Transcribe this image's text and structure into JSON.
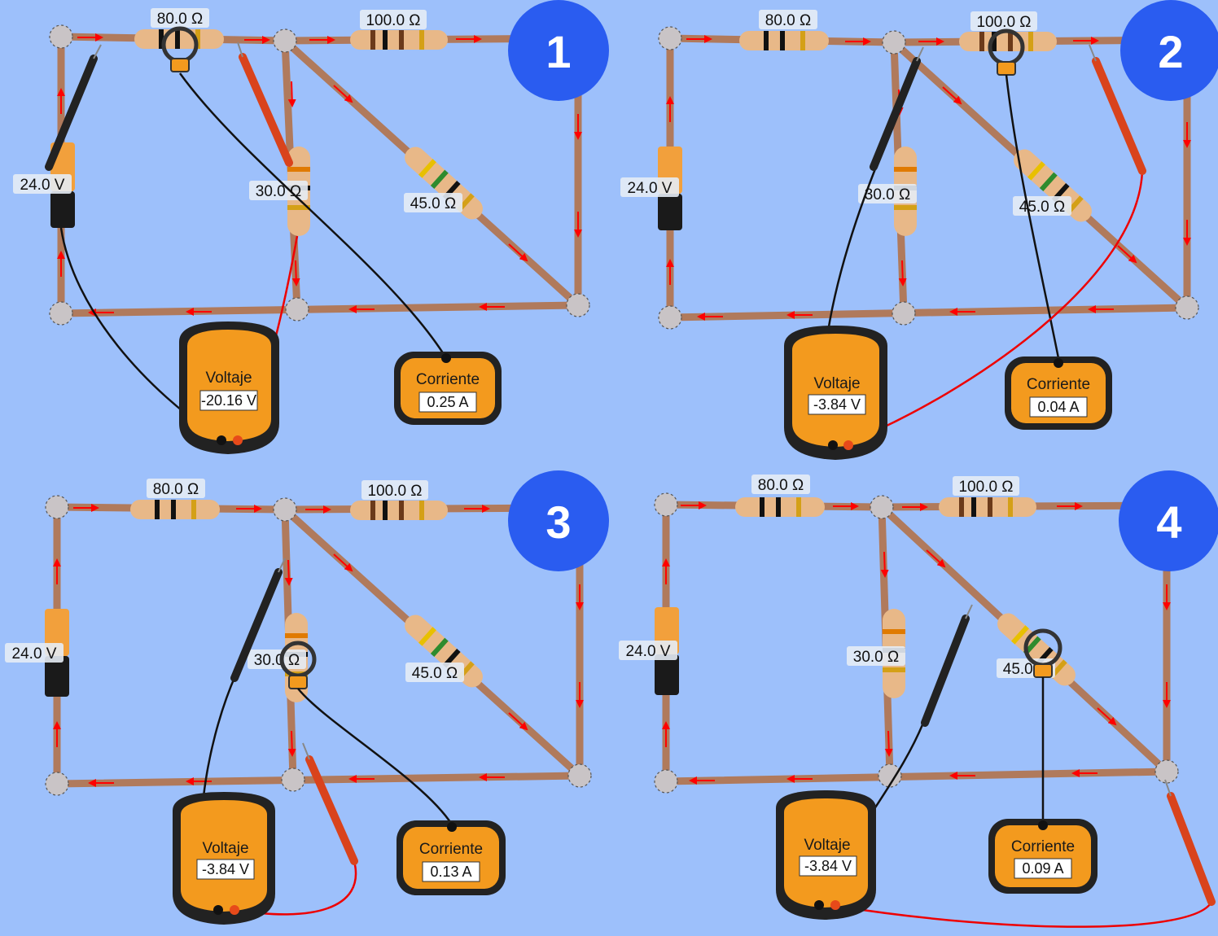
{
  "colors": {
    "background": "#9dc0fb",
    "wire": "#b07a5c",
    "arrow": "#ff0000",
    "badge": "#2a5cf0",
    "meter": "#f39a1e",
    "probe_black": "#222222",
    "probe_red": "#d9431c"
  },
  "panels": [
    {
      "number": "1",
      "labels": {
        "r80": "80.0 Ω",
        "r100": "100.0 Ω",
        "r30": "30.0 Ω",
        "r45": "45.0 Ω",
        "battery": "24.0 V"
      },
      "voltmeter": {
        "title": "Voltaje",
        "reading": "-20.16 V"
      },
      "ammeter": {
        "title": "Corriente",
        "reading": "0.25 A",
        "clamp_on": "80.0 Ω resistor"
      }
    },
    {
      "number": "2",
      "labels": {
        "r80": "80.0 Ω",
        "r100": "100.0 Ω",
        "r30": "30.0 Ω",
        "r45": "45.0 Ω",
        "battery": "24.0 V"
      },
      "voltmeter": {
        "title": "Voltaje",
        "reading": "-3.84 V"
      },
      "ammeter": {
        "title": "Corriente",
        "reading": "0.04 A",
        "clamp_on": "100.0 Ω resistor"
      }
    },
    {
      "number": "3",
      "labels": {
        "r80": "80.0 Ω",
        "r100": "100.0 Ω",
        "r30": "30.0 Ω",
        "r45": "45.0 Ω",
        "battery": "24.0 V"
      },
      "voltmeter": {
        "title": "Voltaje",
        "reading": "-3.84 V"
      },
      "ammeter": {
        "title": "Corriente",
        "reading": "0.13 A",
        "clamp_on": "30.0 Ω resistor"
      }
    },
    {
      "number": "4",
      "labels": {
        "r80": "80.0 Ω",
        "r100": "100.0 Ω",
        "r30": "30.0 Ω",
        "r45": "45.0 Ω",
        "battery": "24.0 V"
      },
      "voltmeter": {
        "title": "Voltaje",
        "reading": "-3.84 V"
      },
      "ammeter": {
        "title": "Corriente",
        "reading": "0.09 A",
        "clamp_on": "45.0 Ω resistor"
      }
    }
  ]
}
